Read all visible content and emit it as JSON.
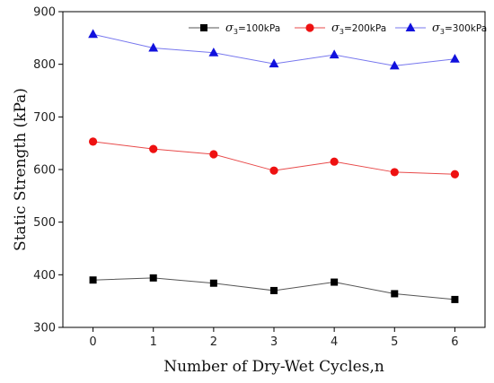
{
  "chart_data": {
    "type": "line",
    "xlabel": "Number of Dry-Wet Cycles,n",
    "ylabel": "Static Strength (kPa)",
    "x": [
      0,
      1,
      2,
      3,
      4,
      5,
      6
    ],
    "xticks": [
      "0",
      "1",
      "2",
      "3",
      "4",
      "5",
      "6"
    ],
    "xlim": [
      -0.5,
      6.5
    ],
    "ylim": [
      300,
      900
    ],
    "yticks": [
      "300",
      "400",
      "500",
      "600",
      "700",
      "800",
      "900"
    ],
    "legend_position": "top-right",
    "grid": false,
    "series": [
      {
        "name": "σ3=100kPa",
        "legend": {
          "sigma": "σ",
          "sub": "3",
          "suffix": "=100kPa"
        },
        "marker": "square",
        "marker_color": "#000000",
        "line_color": "#555555",
        "values": [
          390,
          394,
          384,
          370,
          386,
          364,
          353
        ]
      },
      {
        "name": "σ3=200kPa",
        "legend": {
          "sigma": "σ",
          "sub": "3",
          "suffix": "=200kPa"
        },
        "marker": "circle",
        "marker_color": "#ee1111",
        "line_color": "#e84a4a",
        "values": [
          653,
          639,
          629,
          598,
          615,
          595,
          591
        ]
      },
      {
        "name": "σ3=300kPa",
        "legend": {
          "sigma": "σ",
          "sub": "3",
          "suffix": "=300kPa"
        },
        "marker": "triangle",
        "marker_color": "#1111dd",
        "line_color": "#7777ee",
        "values": [
          857,
          831,
          822,
          801,
          818,
          797,
          810
        ]
      }
    ]
  }
}
